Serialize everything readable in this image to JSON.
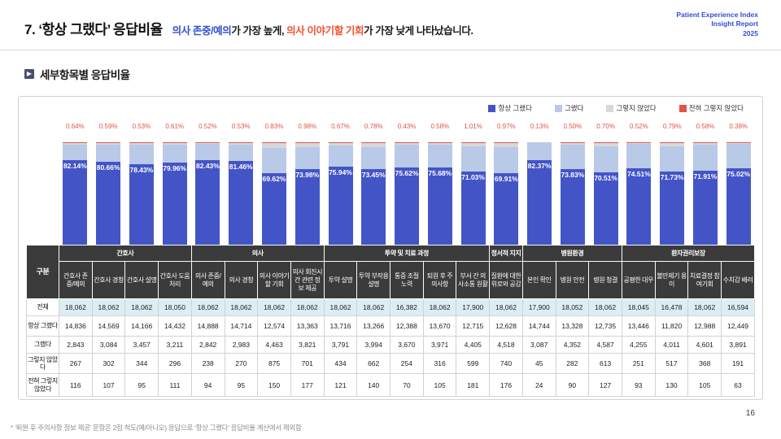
{
  "header": {
    "title": "7. ‘항상 그랬다’ 응답비율",
    "subtitle_parts": [
      {
        "text": "의사 존중/예의",
        "color": "blue"
      },
      {
        "text": "가 가장 높게, ",
        "color": "dark"
      },
      {
        "text": "의사 이야기할 기회",
        "color": "red"
      },
      {
        "text": "가 가장 낮게 나타났습니다.",
        "color": "dark"
      }
    ],
    "report_lines": [
      "Patient Experience Index",
      "Insight Report",
      "2025"
    ]
  },
  "section_title": "세부항목별 응답비율",
  "legend": [
    {
      "label": "항상 그랬다",
      "color": "#4355c6"
    },
    {
      "label": "그랬다",
      "color": "#b9c9e8"
    },
    {
      "label": "그렇지 않았다",
      "color": "#d8d8d8"
    },
    {
      "label": "전혀 그렇지 않았다",
      "color": "#e0544a"
    }
  ],
  "chart_data": {
    "type": "bar",
    "stacked": true,
    "unit": "percent of respondents, 100% stacked",
    "legend_position": "top-right",
    "groups": [
      {
        "label": "간호사",
        "span": 4
      },
      {
        "label": "의사",
        "span": 4
      },
      {
        "label": "투약 및 치료 과정",
        "span": 5
      },
      {
        "label": "정서적 지지",
        "span": 1
      },
      {
        "label": "병원환경",
        "span": 3
      },
      {
        "label": "환자권리보장",
        "span": 4
      }
    ],
    "categories": [
      "간호사 존중/예의",
      "간호사 경청",
      "간호사 설명",
      "간호사 도움처리",
      "의사 존중/예의",
      "의사 경청",
      "의사 이야기할 기회",
      "의사 회진시간 관련 정보 제공",
      "투약 설명",
      "투약 부작용 설명",
      "통증 조절 노력",
      "퇴원 후 주의사항",
      "부서 간 의사소통 원활",
      "질환에 대한 위로와 공감",
      "본인 확인",
      "병원 안전",
      "병원 청결",
      "공평한 대우",
      "불만제기 용이",
      "치료결정 참여기회",
      "수치감 배려"
    ],
    "always_pct_labels": [
      "82.14%",
      "80.66%",
      "78.43%",
      "79.96%",
      "82.43%",
      "81.46%",
      "69.62%",
      "73.98%",
      "75.94%",
      "73.45%",
      "75.62%",
      "75.68%",
      "71.03%",
      "69.91%",
      "82.37%",
      "73.83%",
      "70.51%",
      "74.51%",
      "71.73%",
      "71.91%",
      "75.02%"
    ],
    "never_pct_labels": [
      "0.64%",
      "0.59%",
      "0.53%",
      "0.61%",
      "0.52%",
      "0.53%",
      "0.83%",
      "0.98%",
      "0.67%",
      "0.78%",
      "0.43%",
      "0.58%",
      "1.01%",
      "0.97%",
      "0.13%",
      "0.50%",
      "0.70%",
      "0.52%",
      "0.79%",
      "0.58%",
      "0.38%"
    ],
    "table": {
      "corner_label": "구분",
      "row_labels": {
        "total": "전체",
        "always": "항상 그랬다",
        "yes": "그랬다",
        "no": "그렇지 않았다",
        "never": "전혀 그렇지 않았다"
      },
      "rows": {
        "total": [
          "18,062",
          "18,062",
          "18,062",
          "18,050",
          "18,062",
          "18,062",
          "18,062",
          "18,062",
          "18,062",
          "18,062",
          "16,382",
          "18,062",
          "17,900",
          "18,062",
          "17,900",
          "18,052",
          "18,062",
          "18,045",
          "16,478",
          "18,062",
          "16,594"
        ],
        "always": [
          "14,836",
          "14,569",
          "14,166",
          "14,432",
          "14,888",
          "14,714",
          "12,574",
          "13,363",
          "13,716",
          "13,266",
          "12,388",
          "13,670",
          "12,715",
          "12,628",
          "14,744",
          "13,328",
          "12,735",
          "13,446",
          "11,820",
          "12,988",
          "12,449"
        ],
        "yes": [
          "2,843",
          "3,084",
          "3,457",
          "3,211",
          "2,842",
          "2,983",
          "4,463",
          "3,821",
          "3,791",
          "3,994",
          "3,670",
          "3,971",
          "4,405",
          "4,518",
          "3,087",
          "4,352",
          "4,587",
          "4,255",
          "4,011",
          "4,601",
          "3,891"
        ],
        "no": [
          "267",
          "302",
          "344",
          "296",
          "238",
          "270",
          "875",
          "701",
          "434",
          "662",
          "254",
          "316",
          "599",
          "740",
          "45",
          "282",
          "613",
          "251",
          "517",
          "368",
          "191"
        ],
        "never": [
          "116",
          "107",
          "95",
          "111",
          "94",
          "95",
          "150",
          "177",
          "121",
          "140",
          "70",
          "105",
          "181",
          "176",
          "24",
          "90",
          "127",
          "93",
          "130",
          "105",
          "63"
        ]
      }
    }
  },
  "footnote": "* ‘퇴원 후 주의사항 정보 제공’ 문항은 2점 척도(예/아니오) 응답으로 ‘항상 그랬다’ 응답비율 계산에서 제외함",
  "page_number": "16"
}
